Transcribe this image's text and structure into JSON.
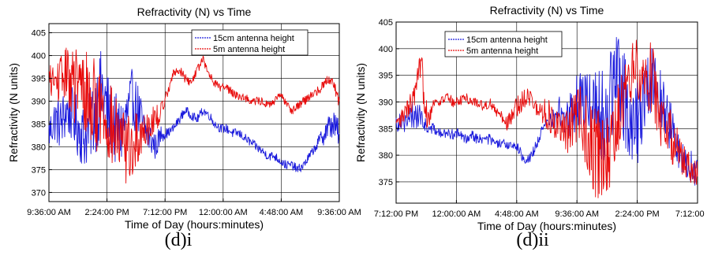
{
  "chart_data": [
    {
      "type": "line",
      "caption": "(d)i",
      "title": "Refractivity (N) vs Time",
      "xlabel": "Time of Day (hours:minutes)",
      "ylabel": "Refractivity (N units)",
      "x_ticks": [
        "9:36:00 AM",
        "2:24:00 PM",
        "7:12:00 PM",
        "12:00:00 AM",
        "4:48:00 AM",
        "9:36:00 AM"
      ],
      "y_ticks": [
        370,
        375,
        380,
        385,
        390,
        395,
        400,
        405
      ],
      "ylim": [
        368,
        407
      ],
      "legend_position": "top-right",
      "series": [
        {
          "name": "15cm antenna height",
          "color": "#1a1adc",
          "x_hours": [
            0,
            0.5,
            1,
            1.5,
            2,
            2.5,
            3,
            3.5,
            4,
            4.5,
            5,
            5.5,
            6,
            6.5,
            7,
            7.5,
            8,
            8.5,
            9,
            9.5,
            10,
            10.5,
            11,
            11.5,
            12,
            12.5,
            13,
            13.5,
            14,
            14.5,
            15,
            15.5,
            16,
            16.5,
            17,
            17.5,
            18,
            18.5,
            19,
            19.5,
            20,
            20.5,
            21,
            21.5,
            22,
            22.5,
            23,
            23.5,
            24,
            24.5
          ],
          "values": [
            383,
            386,
            385,
            388,
            387,
            384,
            382,
            385,
            389,
            392,
            387,
            384,
            383,
            386,
            391,
            388,
            384,
            382,
            380,
            383,
            383,
            384,
            386,
            388,
            387,
            386,
            388,
            387,
            385,
            384,
            384,
            383,
            383,
            382,
            381,
            380,
            379,
            378,
            378,
            377,
            376,
            376,
            375,
            376,
            378,
            380,
            382,
            384,
            385,
            383
          ],
          "noise": [
            4,
            5,
            6,
            6,
            6,
            7,
            7,
            8,
            10,
            10,
            9,
            8,
            8,
            7,
            6,
            6,
            5,
            4,
            3,
            2,
            1,
            1,
            1,
            1,
            1,
            1,
            1,
            1,
            1,
            1,
            1,
            1,
            1,
            1,
            1,
            1,
            1,
            1,
            1,
            1,
            1,
            1,
            1,
            1,
            1,
            1,
            2,
            3,
            3,
            3
          ]
        },
        {
          "name": "5m antenna height",
          "color": "#e80a0a",
          "x_hours": [
            0,
            0.5,
            1,
            1.5,
            2,
            2.5,
            3,
            3.5,
            4,
            4.5,
            5,
            5.5,
            6,
            6.5,
            7,
            7.5,
            8,
            8.5,
            9,
            9.5,
            10,
            10.5,
            11,
            11.5,
            12,
            12.5,
            13,
            13.5,
            14,
            14.5,
            15,
            15.5,
            16,
            16.5,
            17,
            17.5,
            18,
            18.5,
            19,
            19.5,
            20,
            20.5,
            21,
            21.5,
            22,
            22.5,
            23,
            23.5,
            24,
            24.5
          ],
          "values": [
            395,
            394,
            395,
            396,
            394,
            393,
            392,
            390,
            389,
            388,
            386,
            383,
            381,
            380,
            379,
            382,
            384,
            385,
            386,
            388,
            392,
            396,
            397,
            395,
            394,
            397,
            399,
            396,
            394,
            393,
            393,
            392,
            391,
            391,
            390,
            390,
            390,
            389,
            390,
            391,
            390,
            388,
            389,
            390,
            391,
            392,
            393,
            395,
            394,
            390
          ],
          "noise": [
            3,
            4,
            5,
            6,
            8,
            9,
            10,
            10,
            10,
            9,
            9,
            9,
            8,
            8,
            7,
            6,
            5,
            4,
            3,
            2,
            1,
            1,
            1,
            1,
            1,
            1,
            1,
            1,
            1,
            1,
            1,
            1,
            1,
            1,
            1,
            1,
            1,
            1,
            1,
            1,
            1,
            1,
            1,
            1,
            1,
            1,
            1,
            1,
            1,
            2
          ]
        }
      ]
    },
    {
      "type": "line",
      "caption": "(d)ii",
      "title": "Refractivity (N) vs Time",
      "xlabel": "Time of Day (hours:minutes)",
      "ylabel": "Refractivity (N units)",
      "x_ticks": [
        "7:12:00 PM",
        "12:00:00 AM",
        "4:48:00 AM",
        "9:36:00 AM",
        "2:24:00 PM",
        "7:12:00 PM"
      ],
      "y_ticks": [
        375,
        380,
        385,
        390,
        395,
        400,
        405
      ],
      "ylim": [
        371,
        405
      ],
      "legend_position": "top-left",
      "series": [
        {
          "name": "15cm antenna height",
          "color": "#1a1adc",
          "x_hours": [
            0,
            0.5,
            1,
            1.5,
            2,
            2.5,
            3,
            3.5,
            4,
            4.5,
            5,
            5.5,
            6,
            6.5,
            7,
            7.5,
            8,
            8.5,
            9,
            9.5,
            10,
            10.5,
            11,
            11.5,
            12,
            12.5,
            13,
            13.5,
            14,
            14.5,
            15,
            15.5,
            16,
            16.5,
            17,
            17.5,
            18,
            18.5,
            19,
            19.5,
            20,
            20.5,
            21,
            21.5,
            22,
            22.5,
            23,
            23.5,
            24
          ],
          "values": [
            386,
            387,
            386,
            388,
            387,
            385,
            385,
            384,
            384,
            384,
            384,
            383,
            384,
            383,
            383,
            383,
            382,
            382,
            382,
            382,
            380,
            379,
            381,
            384,
            386,
            387,
            388,
            387,
            388,
            390,
            391,
            390,
            389,
            387,
            391,
            394,
            392,
            388,
            385,
            388,
            393,
            395,
            392,
            388,
            384,
            381,
            379,
            378,
            376
          ],
          "noise": [
            2,
            2,
            3,
            3,
            2,
            1,
            1,
            1,
            1,
            1,
            1,
            1,
            1,
            1,
            1,
            1,
            1,
            1,
            1,
            1,
            1,
            1,
            1,
            1,
            1,
            2,
            3,
            4,
            5,
            6,
            6,
            7,
            8,
            9,
            10,
            10,
            9,
            8,
            8,
            8,
            7,
            6,
            6,
            5,
            5,
            4,
            3,
            3,
            3
          ]
        },
        {
          "name": "5m antenna height",
          "color": "#e80a0a",
          "x_hours": [
            0,
            0.5,
            1,
            1.5,
            2,
            2.5,
            3,
            3.5,
            4,
            4.5,
            5,
            5.5,
            6,
            6.5,
            7,
            7.5,
            8,
            8.5,
            9,
            9.5,
            10,
            10.5,
            11,
            11.5,
            12,
            12.5,
            13,
            13.5,
            14,
            14.5,
            15,
            15.5,
            16,
            16.5,
            17,
            17.5,
            18,
            18.5,
            19,
            19.5,
            20,
            20.5,
            21,
            21.5,
            22,
            22.5,
            23,
            23.5,
            24
          ],
          "values": [
            385,
            387,
            389,
            391,
            396,
            387,
            390,
            390,
            391,
            390,
            390,
            391,
            390,
            390,
            389,
            390,
            388,
            387,
            386,
            389,
            390,
            392,
            389,
            388,
            388,
            386,
            385,
            384,
            386,
            388,
            385,
            382,
            380,
            378,
            380,
            385,
            390,
            394,
            397,
            395,
            396,
            393,
            388,
            385,
            383,
            381,
            379,
            377,
            376
          ],
          "noise": [
            2,
            2,
            2,
            3,
            4,
            3,
            1,
            1,
            1,
            1,
            1,
            1,
            1,
            1,
            1,
            1,
            1,
            1,
            2,
            2,
            2,
            2,
            2,
            2,
            3,
            3,
            3,
            4,
            5,
            6,
            7,
            8,
            9,
            9,
            8,
            7,
            6,
            6,
            5,
            6,
            7,
            7,
            6,
            5,
            5,
            4,
            3,
            3,
            3
          ]
        }
      ]
    }
  ]
}
